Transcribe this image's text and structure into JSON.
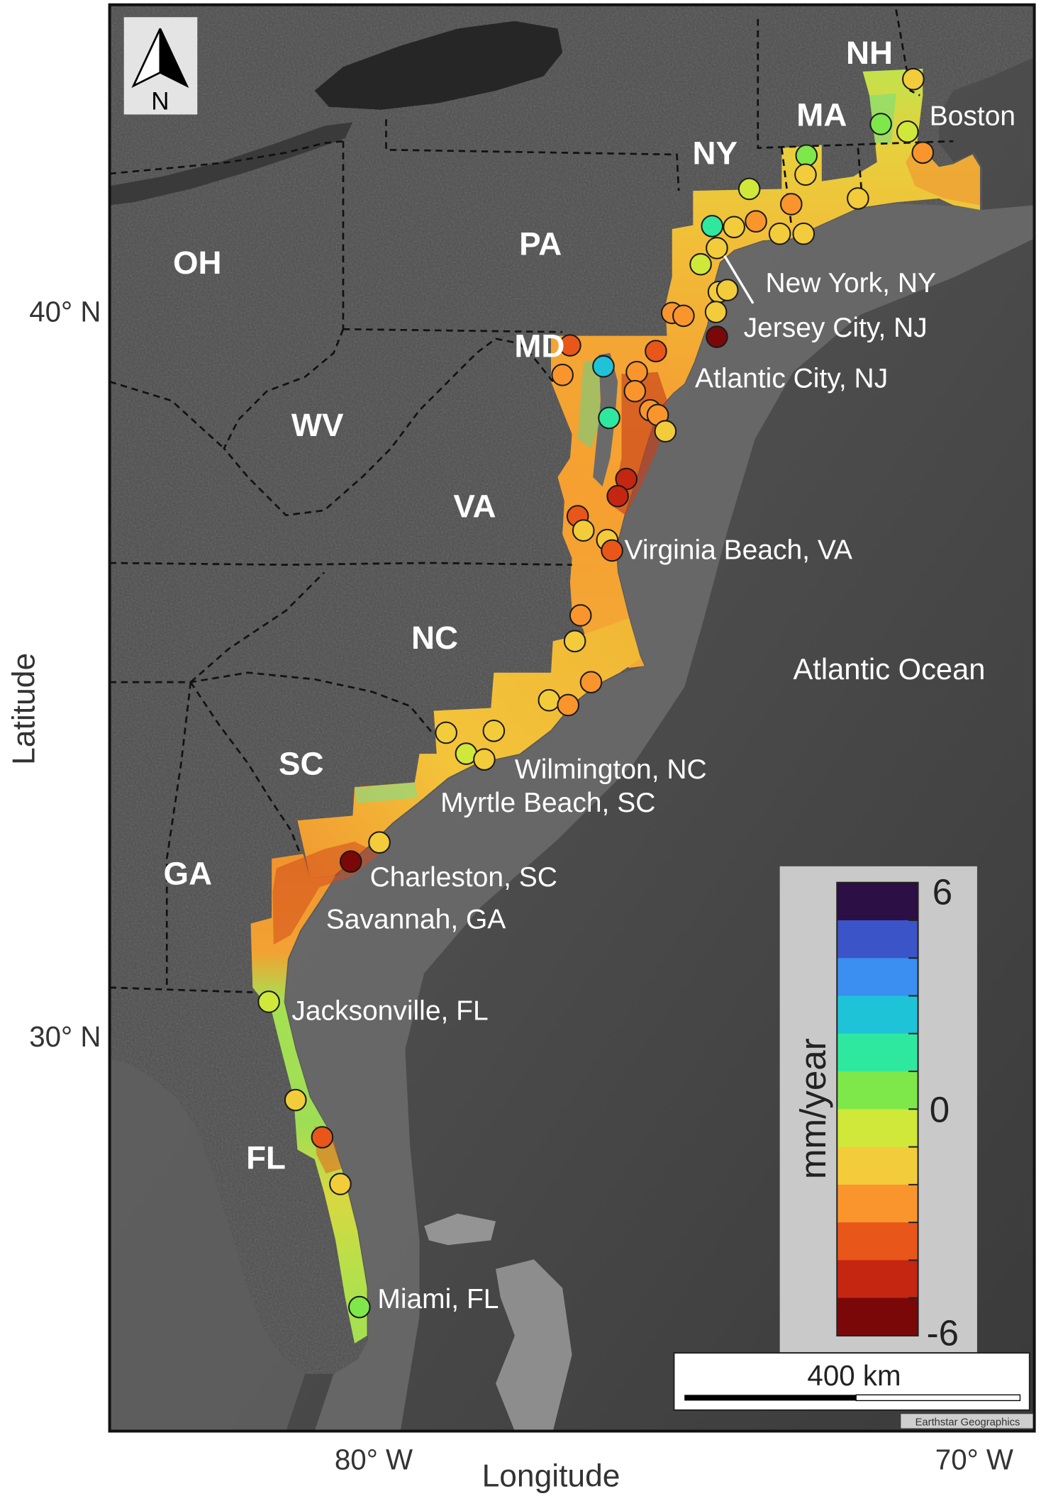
{
  "axes": {
    "ylabel": "Latitude",
    "xlabel": "Longitude",
    "yticks": [
      "40° N",
      "30° N"
    ],
    "xticks": [
      "80° W",
      "70° W"
    ]
  },
  "north_arrow": {
    "label": "N"
  },
  "states": [
    "NH",
    "MA",
    "NY",
    "PA",
    "OH",
    "MD",
    "WV",
    "VA",
    "NC",
    "SC",
    "GA",
    "FL"
  ],
  "cities": [
    "Boston",
    "New York, NY",
    "Jersey City, NJ",
    "Atlantic City, NJ",
    "Virginia Beach, VA",
    "Wilmington, NC",
    "Myrtle Beach, SC",
    "Charleston, SC",
    "Savannah, GA",
    "Jacksonville, FL",
    "Miami, FL"
  ],
  "ocean_label": "Atlantic Ocean",
  "legend": {
    "title": "mm/year",
    "max_label": "6",
    "zero_label": "0",
    "min_label": "-6",
    "range": [
      -6,
      6
    ],
    "colors": [
      "#2b0f45",
      "#3b54c8",
      "#3a8ff0",
      "#1ec3d8",
      "#2ee8a0",
      "#7ee84a",
      "#cfe83a",
      "#f2cc3a",
      "#f9952c",
      "#e8561a",
      "#c42612",
      "#7a0808"
    ]
  },
  "scale_bar": {
    "label": "400 km"
  },
  "attribution": "Earthstar Geographics",
  "colors": {
    "land": "#4e4e4e",
    "ocean": "#505050",
    "shelf": "#6c6c6c",
    "lake": "#262626",
    "legend_background": "#c9c9c9"
  },
  "stations": [
    {
      "rate_mm_per_year": -1.5
    },
    {
      "rate_mm_per_year": 0.5
    },
    {
      "rate_mm_per_year": -0.5
    },
    {
      "rate_mm_per_year": -2.5
    },
    {
      "rate_mm_per_year": 0.5
    },
    {
      "rate_mm_per_year": -1.5
    },
    {
      "rate_mm_per_year": -0.5
    },
    {
      "rate_mm_per_year": -1.5
    },
    {
      "rate_mm_per_year": -2.5
    },
    {
      "rate_mm_per_year": 1.5
    },
    {
      "rate_mm_per_year": -1.5
    },
    {
      "rate_mm_per_year": -2.5
    },
    {
      "rate_mm_per_year": -1.5
    },
    {
      "rate_mm_per_year": -1.5
    },
    {
      "rate_mm_per_year": -1.5
    },
    {
      "rate_mm_per_year": -0.5
    },
    {
      "rate_mm_per_year": -1.5
    },
    {
      "rate_mm_per_year": -1.5
    },
    {
      "rate_mm_per_year": -1.5
    },
    {
      "rate_mm_per_year": -2.5
    },
    {
      "rate_mm_per_year": -2.5
    },
    {
      "rate_mm_per_year": -5.5
    },
    {
      "rate_mm_per_year": -3.5
    },
    {
      "rate_mm_per_year": -3.5
    },
    {
      "rate_mm_per_year": -2.5
    },
    {
      "rate_mm_per_year": 2.5
    },
    {
      "rate_mm_per_year": -2.5
    },
    {
      "rate_mm_per_year": -2.5
    },
    {
      "rate_mm_per_year": -2.5
    },
    {
      "rate_mm_per_year": 1.5
    },
    {
      "rate_mm_per_year": -2.5
    },
    {
      "rate_mm_per_year": -1.5
    },
    {
      "rate_mm_per_year": -4.5
    },
    {
      "rate_mm_per_year": -4.5
    },
    {
      "rate_mm_per_year": -3.5
    },
    {
      "rate_mm_per_year": -1.5
    },
    {
      "rate_mm_per_year": -1.5
    },
    {
      "rate_mm_per_year": -3.5
    },
    {
      "rate_mm_per_year": -2.5
    },
    {
      "rate_mm_per_year": -1.5
    },
    {
      "rate_mm_per_year": -2.5
    },
    {
      "rate_mm_per_year": -1.5
    },
    {
      "rate_mm_per_year": -2.5
    },
    {
      "rate_mm_per_year": -1.5
    },
    {
      "rate_mm_per_year": -1.5
    },
    {
      "rate_mm_per_year": -0.5
    },
    {
      "rate_mm_per_year": -1.5
    },
    {
      "rate_mm_per_year": -1.5
    },
    {
      "rate_mm_per_year": -5.5
    },
    {
      "rate_mm_per_year": -0.5
    },
    {
      "rate_mm_per_year": -1.5
    },
    {
      "rate_mm_per_year": -3.5
    },
    {
      "rate_mm_per_year": -1.5
    },
    {
      "rate_mm_per_year": 0.5
    }
  ]
}
